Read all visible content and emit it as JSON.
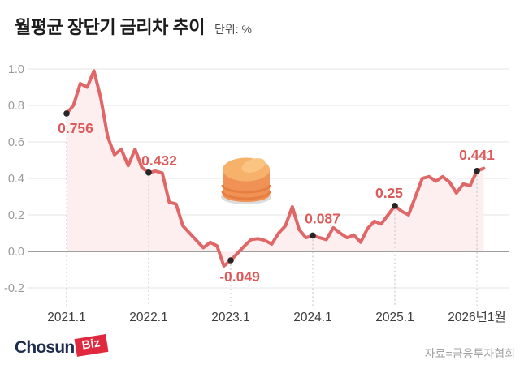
{
  "header": {
    "title": "월평균 장단기 금리차 추이",
    "unit": "단위: %"
  },
  "chart_data": {
    "type": "area",
    "title": "월평균 장단기 금리차 추이",
    "unit": "%",
    "grid": true,
    "ylim": [
      -0.2,
      1.0
    ],
    "y_ticks": [
      1.0,
      0.8,
      0.6,
      0.4,
      0.2,
      0.0,
      -0.2
    ],
    "x_axis": {
      "labels": [
        "2021.1",
        "2022.1",
        "2023.1",
        "2024.1",
        "2025.1",
        "2026년1월"
      ],
      "label_indices": [
        0,
        12,
        24,
        36,
        48,
        60
      ]
    },
    "values": [
      0.756,
      0.8,
      0.92,
      0.9,
      0.99,
      0.84,
      0.63,
      0.53,
      0.56,
      0.47,
      0.56,
      0.46,
      0.432,
      0.44,
      0.43,
      0.27,
      0.26,
      0.14,
      0.1,
      0.06,
      0.02,
      0.05,
      0.03,
      -0.08,
      -0.049,
      -0.01,
      0.03,
      0.065,
      0.07,
      0.06,
      0.04,
      0.1,
      0.14,
      0.245,
      0.12,
      0.075,
      0.087,
      0.075,
      0.065,
      0.13,
      0.1,
      0.075,
      0.09,
      0.05,
      0.125,
      0.165,
      0.15,
      0.2,
      0.25,
      0.22,
      0.2,
      0.3,
      0.4,
      0.41,
      0.385,
      0.41,
      0.38,
      0.32,
      0.37,
      0.36,
      0.441,
      0.455
    ],
    "annotations": [
      {
        "index": 0,
        "value": 0.756,
        "text": "0.756"
      },
      {
        "index": 12,
        "value": 0.432,
        "text": "0.432"
      },
      {
        "index": 24,
        "value": -0.049,
        "text": "-0.049"
      },
      {
        "index": 36,
        "value": 0.087,
        "text": "0.087"
      },
      {
        "index": 48,
        "value": 0.25,
        "text": "0.25"
      },
      {
        "index": 60,
        "value": 0.441,
        "text": "0.441"
      }
    ],
    "colors": {
      "line": "#e06767",
      "area": "#fdefef",
      "label": "#dc5a5a",
      "marker": "#262626",
      "grid": "#e6e6e6",
      "zero_line": "#7f7f7f",
      "dotted": "#bfbfbf",
      "y_tick": "#999999",
      "x_tick": "#3d3d3d"
    },
    "decoration": {
      "icon": "pancakes-icon",
      "colors": {
        "plate": "#dcdcdc",
        "side": "#f09255",
        "stripe": "#e67e41",
        "top": "#f6b16b",
        "highlight": "#fac582"
      }
    }
  },
  "footer": {
    "logo": {
      "chosun": "Chosun",
      "biz": "Biz"
    },
    "source": "자료=금융투자협회"
  }
}
